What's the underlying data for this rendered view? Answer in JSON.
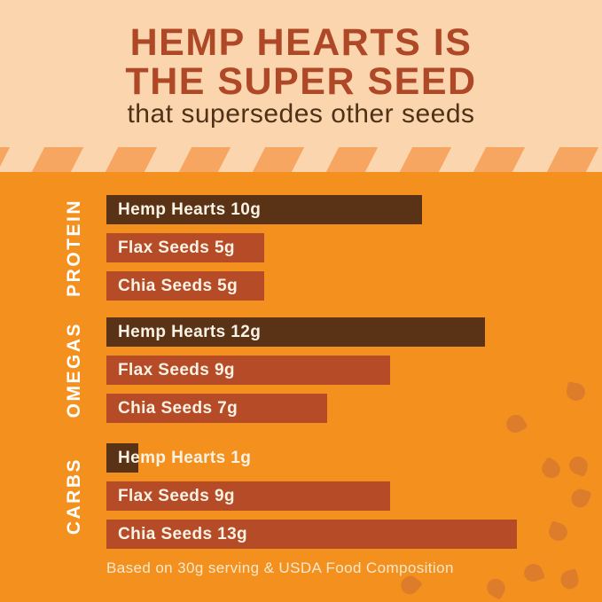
{
  "header": {
    "title_line1": "HEMP HEARTS IS",
    "title_line2": "THE SUPER SEED",
    "subtitle": "that supersedes other seeds"
  },
  "footer": {
    "caption": "Based on 30g serving & USDA Food Composition"
  },
  "colors": {
    "header_background": "#FBD5AE",
    "title_text": "#AE4827",
    "subtitle_text": "#4F3118",
    "stripe": "#F7A661",
    "main_background": "#F4911E",
    "bar_hemp_dark_brown": "#5A3317",
    "bar_rust": "#B54B27",
    "bar_label_text": "#FAF2E4",
    "section_label_text": "#FFFFFF",
    "caption_text": "#F6E8CE",
    "seed_decoration": "#DD7D2B"
  },
  "chart_data": {
    "type": "bar",
    "orientation": "horizontal",
    "title": "HEMP HEARTS IS THE SUPER SEED that supersedes other seeds",
    "unit": "g",
    "xlim": [
      0,
      13
    ],
    "footnote": "Based on 30g serving & USDA Food Composition",
    "legend_position": "none",
    "grid": false,
    "groups": [
      {
        "category": "PROTEIN",
        "bars": [
          {
            "name": "Hemp Hearts",
            "value": 10,
            "label": "Hemp Hearts 10g",
            "emphasis": true
          },
          {
            "name": "Flax Seeds",
            "value": 5,
            "label": "Flax Seeds 5g",
            "emphasis": false
          },
          {
            "name": "Chia Seeds",
            "value": 5,
            "label": "Chia Seeds 5g",
            "emphasis": false
          }
        ]
      },
      {
        "category": "OMEGAS",
        "bars": [
          {
            "name": "Hemp Hearts",
            "value": 12,
            "label": "Hemp Hearts 12g",
            "emphasis": true
          },
          {
            "name": "Flax Seeds",
            "value": 9,
            "label": "Flax Seeds 9g",
            "emphasis": false
          },
          {
            "name": "Chia Seeds",
            "value": 7,
            "label": "Chia Seeds 7g",
            "emphasis": false
          }
        ]
      },
      {
        "category": "CARBS",
        "bars": [
          {
            "name": "Hemp Hearts",
            "value": 1,
            "label": "Hemp Hearts 1g",
            "emphasis": true
          },
          {
            "name": "Flax Seeds",
            "value": 9,
            "label": "Flax Seeds 9g",
            "emphasis": false
          },
          {
            "name": "Chia Seeds",
            "value": 13,
            "label": "Chia Seeds 13g",
            "emphasis": false
          }
        ]
      }
    ]
  }
}
